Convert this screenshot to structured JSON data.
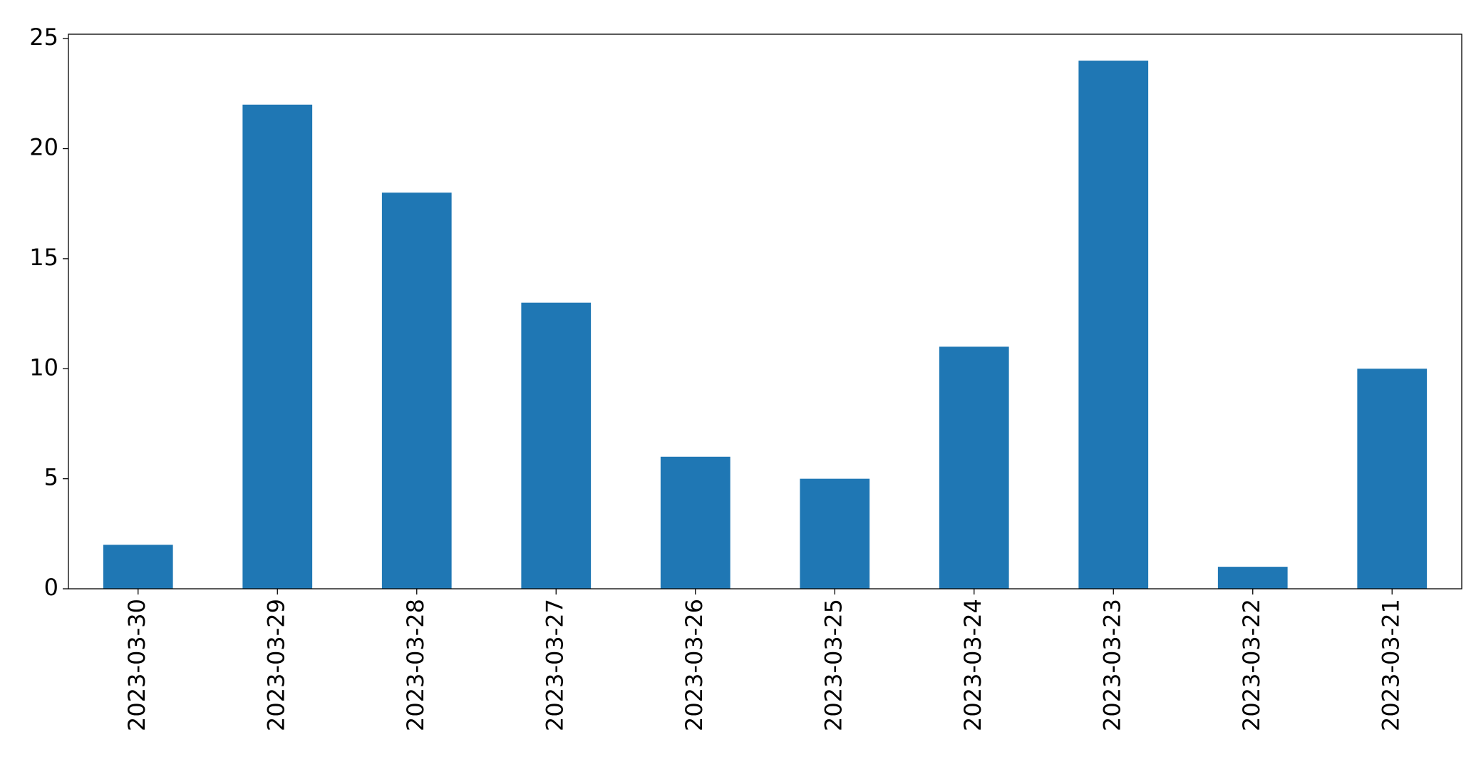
{
  "chart_data": {
    "type": "bar",
    "categories": [
      "2023-03-30",
      "2023-03-29",
      "2023-03-28",
      "2023-03-27",
      "2023-03-26",
      "2023-03-25",
      "2023-03-24",
      "2023-03-23",
      "2023-03-22",
      "2023-03-21"
    ],
    "values": [
      2,
      22,
      18,
      13,
      6,
      5,
      11,
      24,
      1,
      10
    ],
    "color": "#1f77b4",
    "ylim": [
      0,
      25.2
    ],
    "yticks": [
      0,
      5,
      10,
      15,
      20,
      25
    ],
    "grid": false
  }
}
